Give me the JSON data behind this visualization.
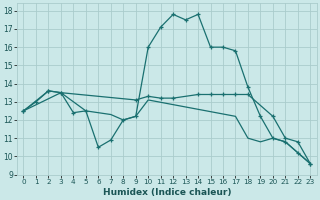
{
  "xlabel": "Humidex (Indice chaleur)",
  "background_color": "#cbe8e8",
  "grid_color": "#aacccc",
  "line_color": "#1a7070",
  "xlim": [
    -0.5,
    23.5
  ],
  "ylim": [
    9,
    18.4
  ],
  "yticks": [
    9,
    10,
    11,
    12,
    13,
    14,
    15,
    16,
    17,
    18
  ],
  "xticks": [
    0,
    1,
    2,
    3,
    4,
    5,
    6,
    7,
    8,
    9,
    10,
    11,
    12,
    13,
    14,
    15,
    16,
    17,
    18,
    19,
    20,
    21,
    22,
    23
  ],
  "line1_x": [
    0,
    1,
    2,
    3,
    4,
    5,
    6,
    7,
    8,
    9,
    10,
    11,
    12,
    13,
    14,
    15,
    16,
    17,
    18,
    19,
    20,
    21,
    22,
    23
  ],
  "line1_y": [
    12.5,
    13.0,
    13.6,
    13.5,
    12.4,
    12.5,
    10.5,
    10.9,
    12.0,
    12.2,
    16.0,
    17.1,
    17.8,
    17.5,
    17.8,
    16.0,
    16.0,
    15.8,
    13.8,
    12.2,
    11.0,
    10.8,
    10.2,
    9.6
  ],
  "line2_x": [
    0,
    2,
    3,
    9,
    10,
    11,
    12,
    14,
    15,
    16,
    17,
    18,
    20,
    21,
    22,
    23
  ],
  "line2_y": [
    12.5,
    13.6,
    13.5,
    13.1,
    13.3,
    13.2,
    13.2,
    13.4,
    13.4,
    13.4,
    13.4,
    13.4,
    12.2,
    11.0,
    10.8,
    9.6
  ],
  "line3_x": [
    0,
    3,
    5,
    7,
    8,
    9,
    10,
    17,
    18,
    19,
    20,
    21,
    22,
    23
  ],
  "line3_y": [
    12.5,
    13.5,
    12.5,
    12.3,
    12.0,
    12.2,
    13.1,
    12.2,
    11.0,
    10.8,
    11.0,
    10.8,
    10.2,
    9.6
  ]
}
